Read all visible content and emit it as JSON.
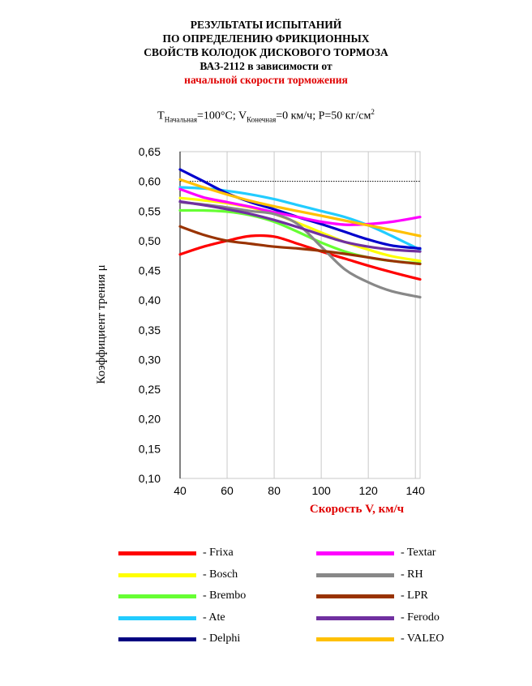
{
  "title_lines": [
    "РЕЗУЛЬТАТЫ ИСПЫТАНИЙ",
    "ПО ОПРЕДЕЛЕНИЮ ФРИКЦИОННЫХ",
    "СВОЙСТВ КОЛОДОК ДИСКОВОГО ТОРМОЗА",
    "ВАЗ-2112   в зависимости от"
  ],
  "title_red": "начальной скорости торможения",
  "conditions": {
    "t_symbol": "T",
    "t_sub": "Начальная",
    "t_value": "=100°C; V",
    "v_sub": "Конечная",
    "v_value": "=0 км/ч; P=50 кг/см",
    "p_sup": "2"
  },
  "chart_data": {
    "type": "line",
    "xlabel": "Скорость V, км/ч",
    "ylabel": "Коэффициент трения  μ",
    "xlim": [
      40,
      142
    ],
    "ylim": [
      0.1,
      0.65
    ],
    "x_ticks": [
      "40",
      "60",
      "80",
      "100",
      "120",
      "140"
    ],
    "y_ticks": [
      "0,10",
      "0,15",
      "0,20",
      "0,25",
      "0,30",
      "0,35",
      "0,40",
      "0,45",
      "0,50",
      "0,55",
      "0,60",
      "0,65"
    ],
    "grid": "vertical",
    "dotted_reference": 0.6,
    "x": [
      40,
      50,
      60,
      70,
      80,
      90,
      100,
      110,
      120,
      130,
      142
    ],
    "series": [
      {
        "name": "Frixa",
        "color": "#ff0000",
        "values": [
          0.477,
          0.49,
          0.5,
          0.508,
          0.507,
          0.495,
          0.482,
          0.47,
          0.458,
          0.447,
          0.435
        ]
      },
      {
        "name": "Bosch",
        "color": "#ffff00",
        "values": [
          0.572,
          0.568,
          0.563,
          0.556,
          0.545,
          0.53,
          0.514,
          0.498,
          0.485,
          0.474,
          0.466
        ]
      },
      {
        "name": "Brembo",
        "color": "#66ff33",
        "values": [
          0.551,
          0.551,
          0.549,
          0.543,
          0.532,
          0.515,
          0.497,
          0.482,
          0.472,
          0.466,
          0.462
        ]
      },
      {
        "name": "Ate",
        "color": "#22ccff",
        "values": [
          0.59,
          0.588,
          0.584,
          0.578,
          0.57,
          0.56,
          0.55,
          0.54,
          0.526,
          0.508,
          0.485
        ]
      },
      {
        "name": "Delphi",
        "color": "#0000cc",
        "values": [
          0.62,
          0.6,
          0.58,
          0.565,
          0.553,
          0.54,
          0.528,
          0.515,
          0.502,
          0.492,
          0.487
        ]
      },
      {
        "name": "Textar",
        "color": "#ff00ff",
        "values": [
          0.587,
          0.573,
          0.565,
          0.557,
          0.548,
          0.54,
          0.532,
          0.527,
          0.528,
          0.532,
          0.54
        ]
      },
      {
        "name": "RH",
        "color": "#888888",
        "values": [
          0.565,
          0.561,
          0.556,
          0.55,
          0.545,
          0.528,
          0.49,
          0.452,
          0.43,
          0.415,
          0.405
        ]
      },
      {
        "name": "LPR",
        "color": "#993300",
        "values": [
          0.524,
          0.51,
          0.5,
          0.495,
          0.49,
          0.487,
          0.483,
          0.478,
          0.472,
          0.466,
          0.461
        ]
      },
      {
        "name": "Ferodo",
        "color": "#7030a0",
        "values": [
          0.566,
          0.56,
          0.553,
          0.545,
          0.535,
          0.523,
          0.51,
          0.498,
          0.49,
          0.485,
          0.482
        ]
      },
      {
        "name": "VALEO",
        "color": "#ffc000",
        "values": [
          0.603,
          0.59,
          0.578,
          0.567,
          0.558,
          0.55,
          0.542,
          0.534,
          0.526,
          0.518,
          0.508
        ]
      }
    ]
  },
  "legend": {
    "left": [
      {
        "label": "- Frixa",
        "color": "#ff0000"
      },
      {
        "label": "- Bosch",
        "color": "#ffff00"
      },
      {
        "label": "- Brembo",
        "color": "#66ff33"
      },
      {
        "label": "- Ate",
        "color": "#22ccff"
      },
      {
        "label": "- Delphi",
        "color": "#000080"
      }
    ],
    "right": [
      {
        "label": "- Textar",
        "color": "#ff00ff"
      },
      {
        "label": "- RH",
        "color": "#888888"
      },
      {
        "label": "- LPR",
        "color": "#993300"
      },
      {
        "label": "- Ferodo",
        "color": "#7030a0"
      },
      {
        "label": "- VALEO",
        "color": "#ffc000"
      }
    ]
  }
}
